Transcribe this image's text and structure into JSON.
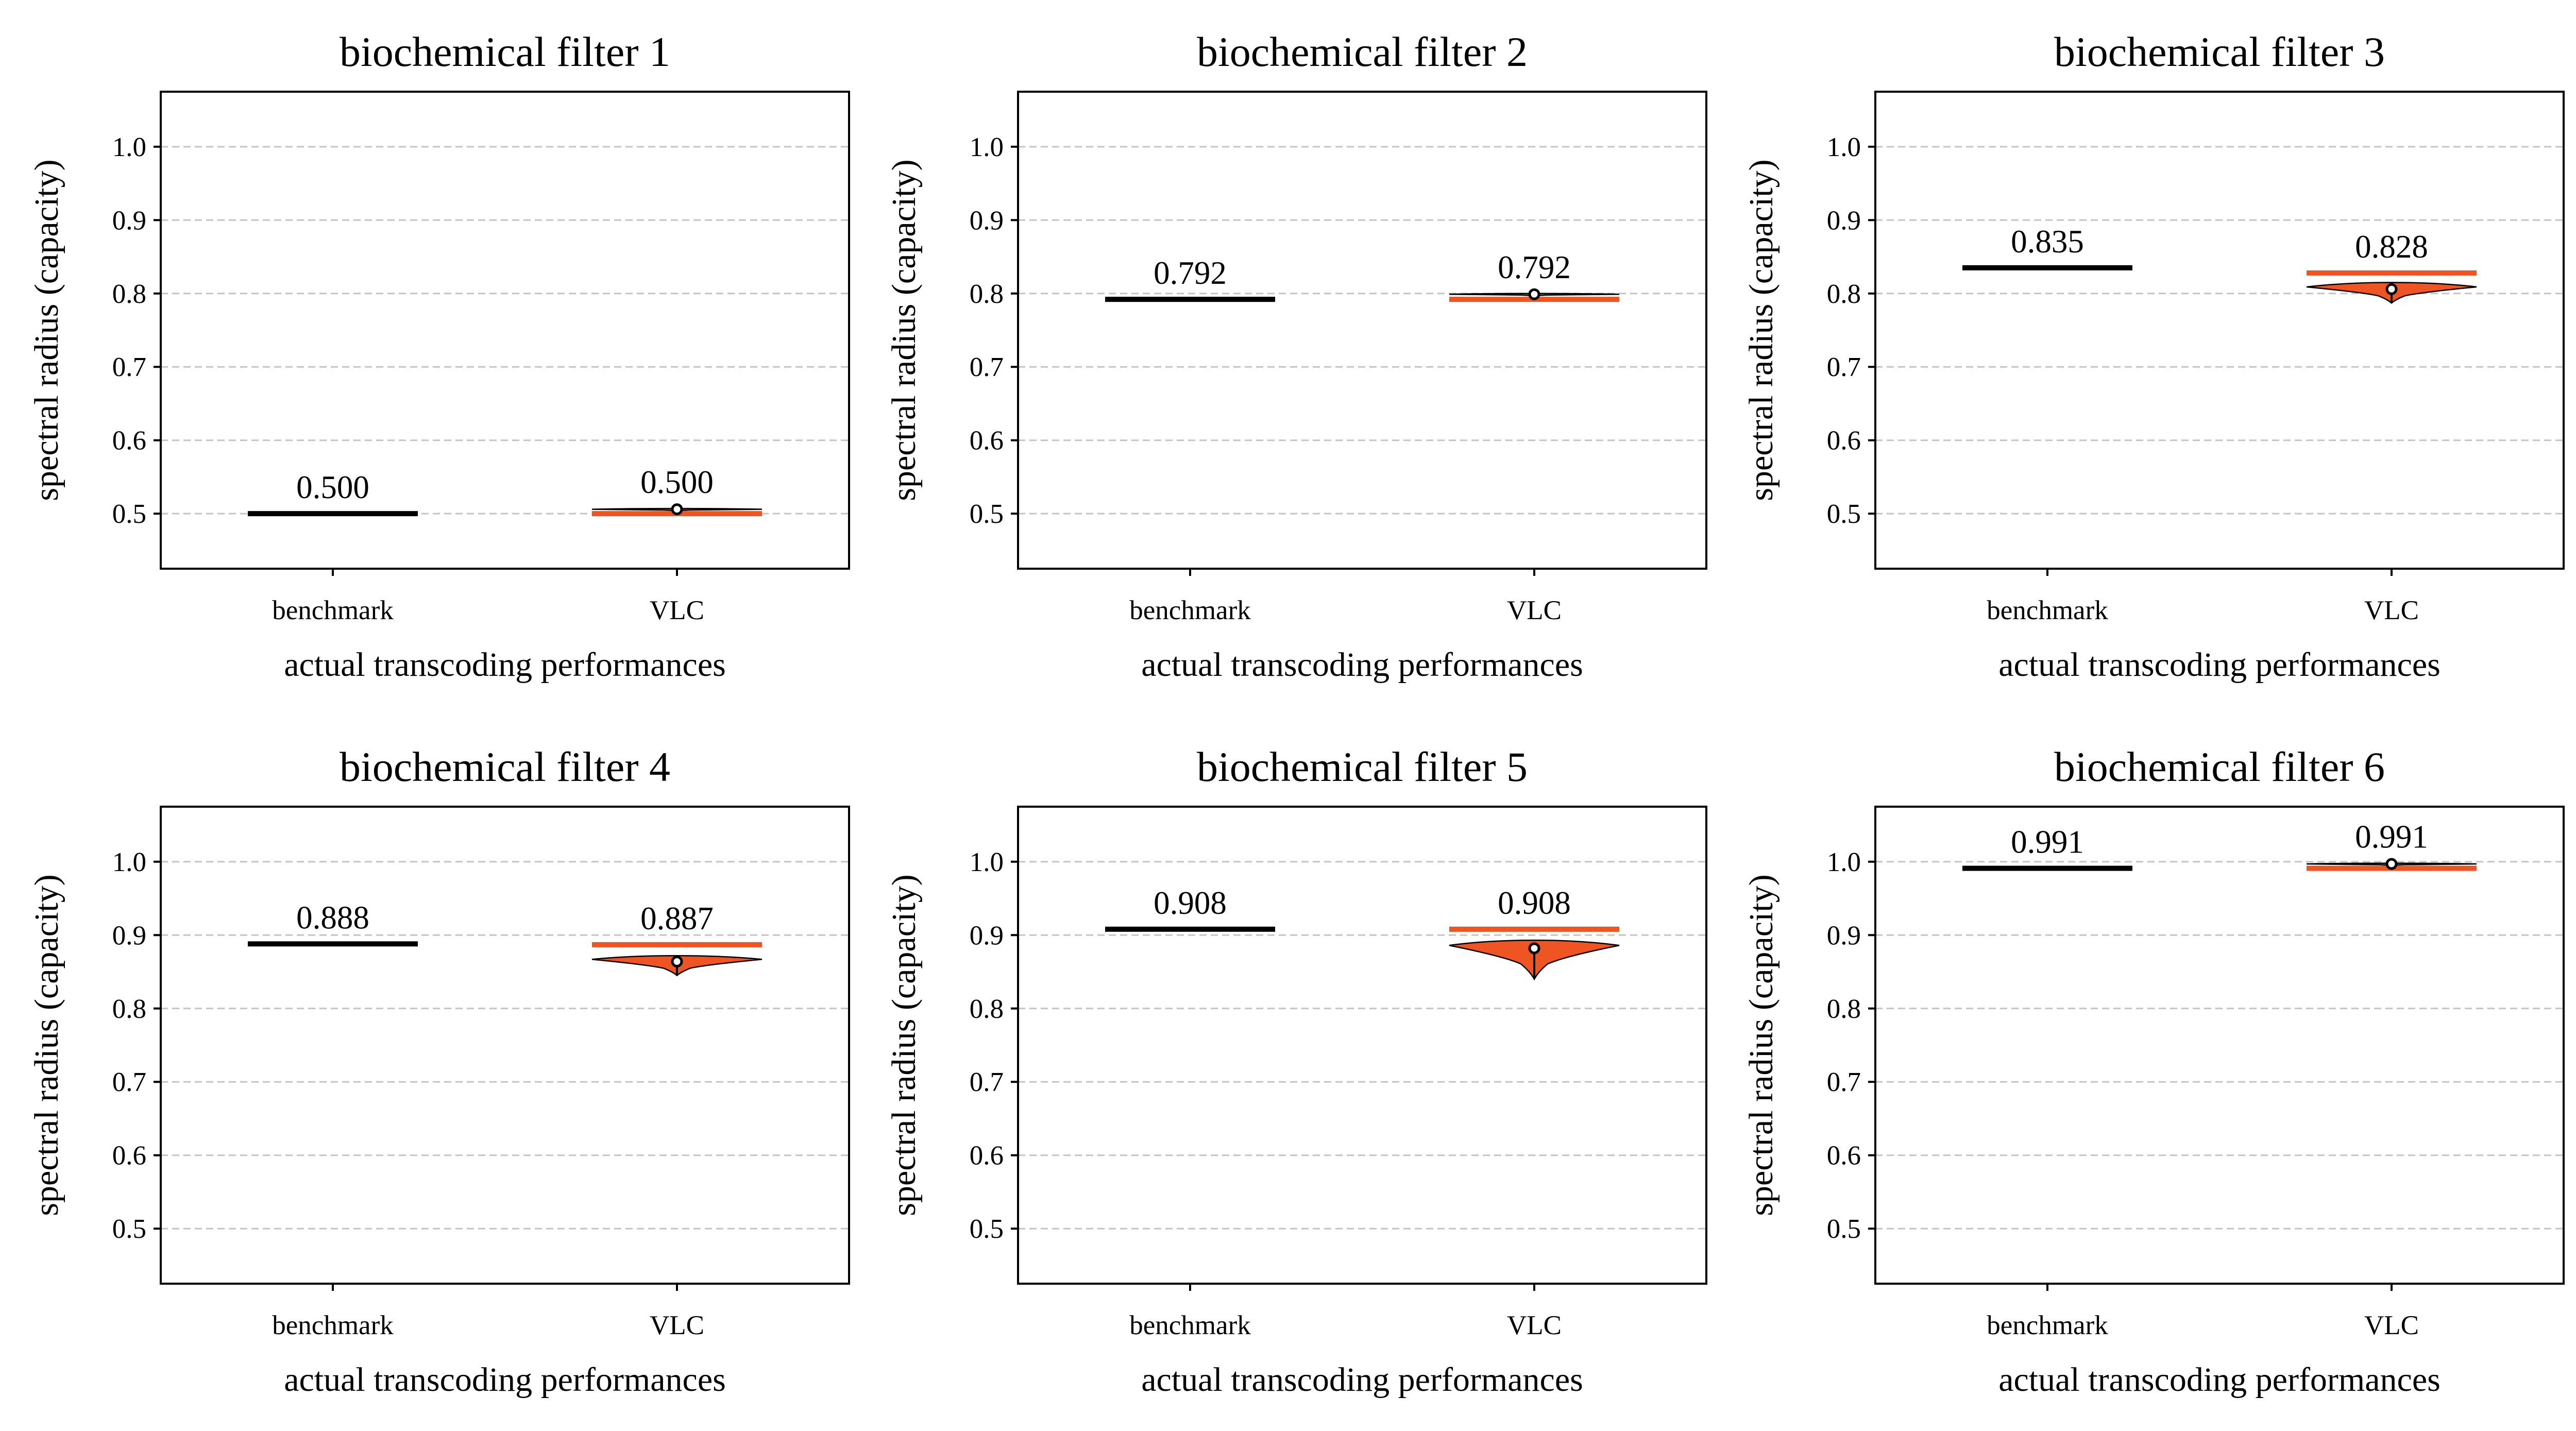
{
  "figure": {
    "colors": {
      "benchmark": "#000000",
      "vlc": "#ee5522",
      "grid": "#c4c4c4",
      "frame": "#000000",
      "mean_marker_fill": "#ffffff"
    }
  },
  "chart_data": [
    {
      "type": "violin",
      "title": "biochemical filter 1",
      "xlabel": "actual transcoding performances",
      "ylabel": "spectral radius (capacity)",
      "categories": [
        "benchmark",
        "VLC"
      ],
      "ylim": [
        0.425,
        1.075
      ],
      "yticks": [
        0.5,
        0.6,
        0.7,
        0.8,
        0.9,
        1.0
      ],
      "ytick_labels": [
        "0.5",
        "0.6",
        "0.7",
        "0.8",
        "0.9",
        "1.0"
      ],
      "grid": "y-dashed",
      "benchmark": {
        "value": 0.5,
        "label": "0.500"
      },
      "vlc": {
        "value": 0.5,
        "label": "0.500",
        "spread_max": 0.507,
        "spread_min": 0.504,
        "violin_peak": 0.506,
        "mean": 0.506,
        "whisker_low": 0.504
      }
    },
    {
      "type": "violin",
      "title": "biochemical filter 2",
      "xlabel": "actual transcoding performances",
      "ylabel": "spectral radius (capacity)",
      "categories": [
        "benchmark",
        "VLC"
      ],
      "ylim": [
        0.425,
        1.075
      ],
      "yticks": [
        0.5,
        0.6,
        0.7,
        0.8,
        0.9,
        1.0
      ],
      "ytick_labels": [
        "0.5",
        "0.6",
        "0.7",
        "0.8",
        "0.9",
        "1.0"
      ],
      "grid": "y-dashed",
      "benchmark": {
        "value": 0.792,
        "label": "0.792"
      },
      "vlc": {
        "value": 0.792,
        "label": "0.792",
        "spread_max": 0.8,
        "spread_min": 0.797,
        "violin_peak": 0.799,
        "mean": 0.799,
        "whisker_low": 0.797
      }
    },
    {
      "type": "violin",
      "title": "biochemical filter 3",
      "xlabel": "actual transcoding performances",
      "ylabel": "spectral radius (capacity)",
      "categories": [
        "benchmark",
        "VLC"
      ],
      "ylim": [
        0.425,
        1.075
      ],
      "yticks": [
        0.5,
        0.6,
        0.7,
        0.8,
        0.9,
        1.0
      ],
      "ytick_labels": [
        "0.5",
        "0.6",
        "0.7",
        "0.8",
        "0.9",
        "1.0"
      ],
      "grid": "y-dashed",
      "benchmark": {
        "value": 0.835,
        "label": "0.835"
      },
      "vlc": {
        "value": 0.828,
        "label": "0.828",
        "spread_max": 0.815,
        "spread_min": 0.787,
        "violin_peak": 0.809,
        "mean": 0.806,
        "whisker_low": 0.787
      }
    },
    {
      "type": "violin",
      "title": "biochemical filter 4",
      "xlabel": "actual transcoding performances",
      "ylabel": "spectral radius (capacity)",
      "categories": [
        "benchmark",
        "VLC"
      ],
      "ylim": [
        0.425,
        1.075
      ],
      "yticks": [
        0.5,
        0.6,
        0.7,
        0.8,
        0.9,
        1.0
      ],
      "ytick_labels": [
        "0.5",
        "0.6",
        "0.7",
        "0.8",
        "0.9",
        "1.0"
      ],
      "grid": "y-dashed",
      "benchmark": {
        "value": 0.888,
        "label": "0.888"
      },
      "vlc": {
        "value": 0.887,
        "label": "0.887",
        "spread_max": 0.872,
        "spread_min": 0.845,
        "violin_peak": 0.867,
        "mean": 0.864,
        "whisker_low": 0.845
      }
    },
    {
      "type": "violin",
      "title": "biochemical filter 5",
      "xlabel": "actual transcoding performances",
      "ylabel": "spectral radius (capacity)",
      "categories": [
        "benchmark",
        "VLC"
      ],
      "ylim": [
        0.425,
        1.075
      ],
      "yticks": [
        0.5,
        0.6,
        0.7,
        0.8,
        0.9,
        1.0
      ],
      "ytick_labels": [
        "0.5",
        "0.6",
        "0.7",
        "0.8",
        "0.9",
        "1.0"
      ],
      "grid": "y-dashed",
      "benchmark": {
        "value": 0.908,
        "label": "0.908"
      },
      "vlc": {
        "value": 0.908,
        "label": "0.908",
        "spread_max": 0.893,
        "spread_min": 0.84,
        "violin_peak": 0.886,
        "mean": 0.882,
        "whisker_low": 0.84
      }
    },
    {
      "type": "violin",
      "title": "biochemical filter 6",
      "xlabel": "actual transcoding performances",
      "ylabel": "spectral radius (capacity)",
      "categories": [
        "benchmark",
        "VLC"
      ],
      "ylim": [
        0.425,
        1.075
      ],
      "yticks": [
        0.5,
        0.6,
        0.7,
        0.8,
        0.9,
        1.0
      ],
      "ytick_labels": [
        "0.5",
        "0.6",
        "0.7",
        "0.8",
        "0.9",
        "1.0"
      ],
      "grid": "y-dashed",
      "benchmark": {
        "value": 0.991,
        "label": "0.991"
      },
      "vlc": {
        "value": 0.991,
        "label": "0.991",
        "spread_max": 0.998,
        "spread_min": 0.995,
        "violin_peak": 0.997,
        "mean": 0.997,
        "whisker_low": 0.995
      }
    }
  ]
}
